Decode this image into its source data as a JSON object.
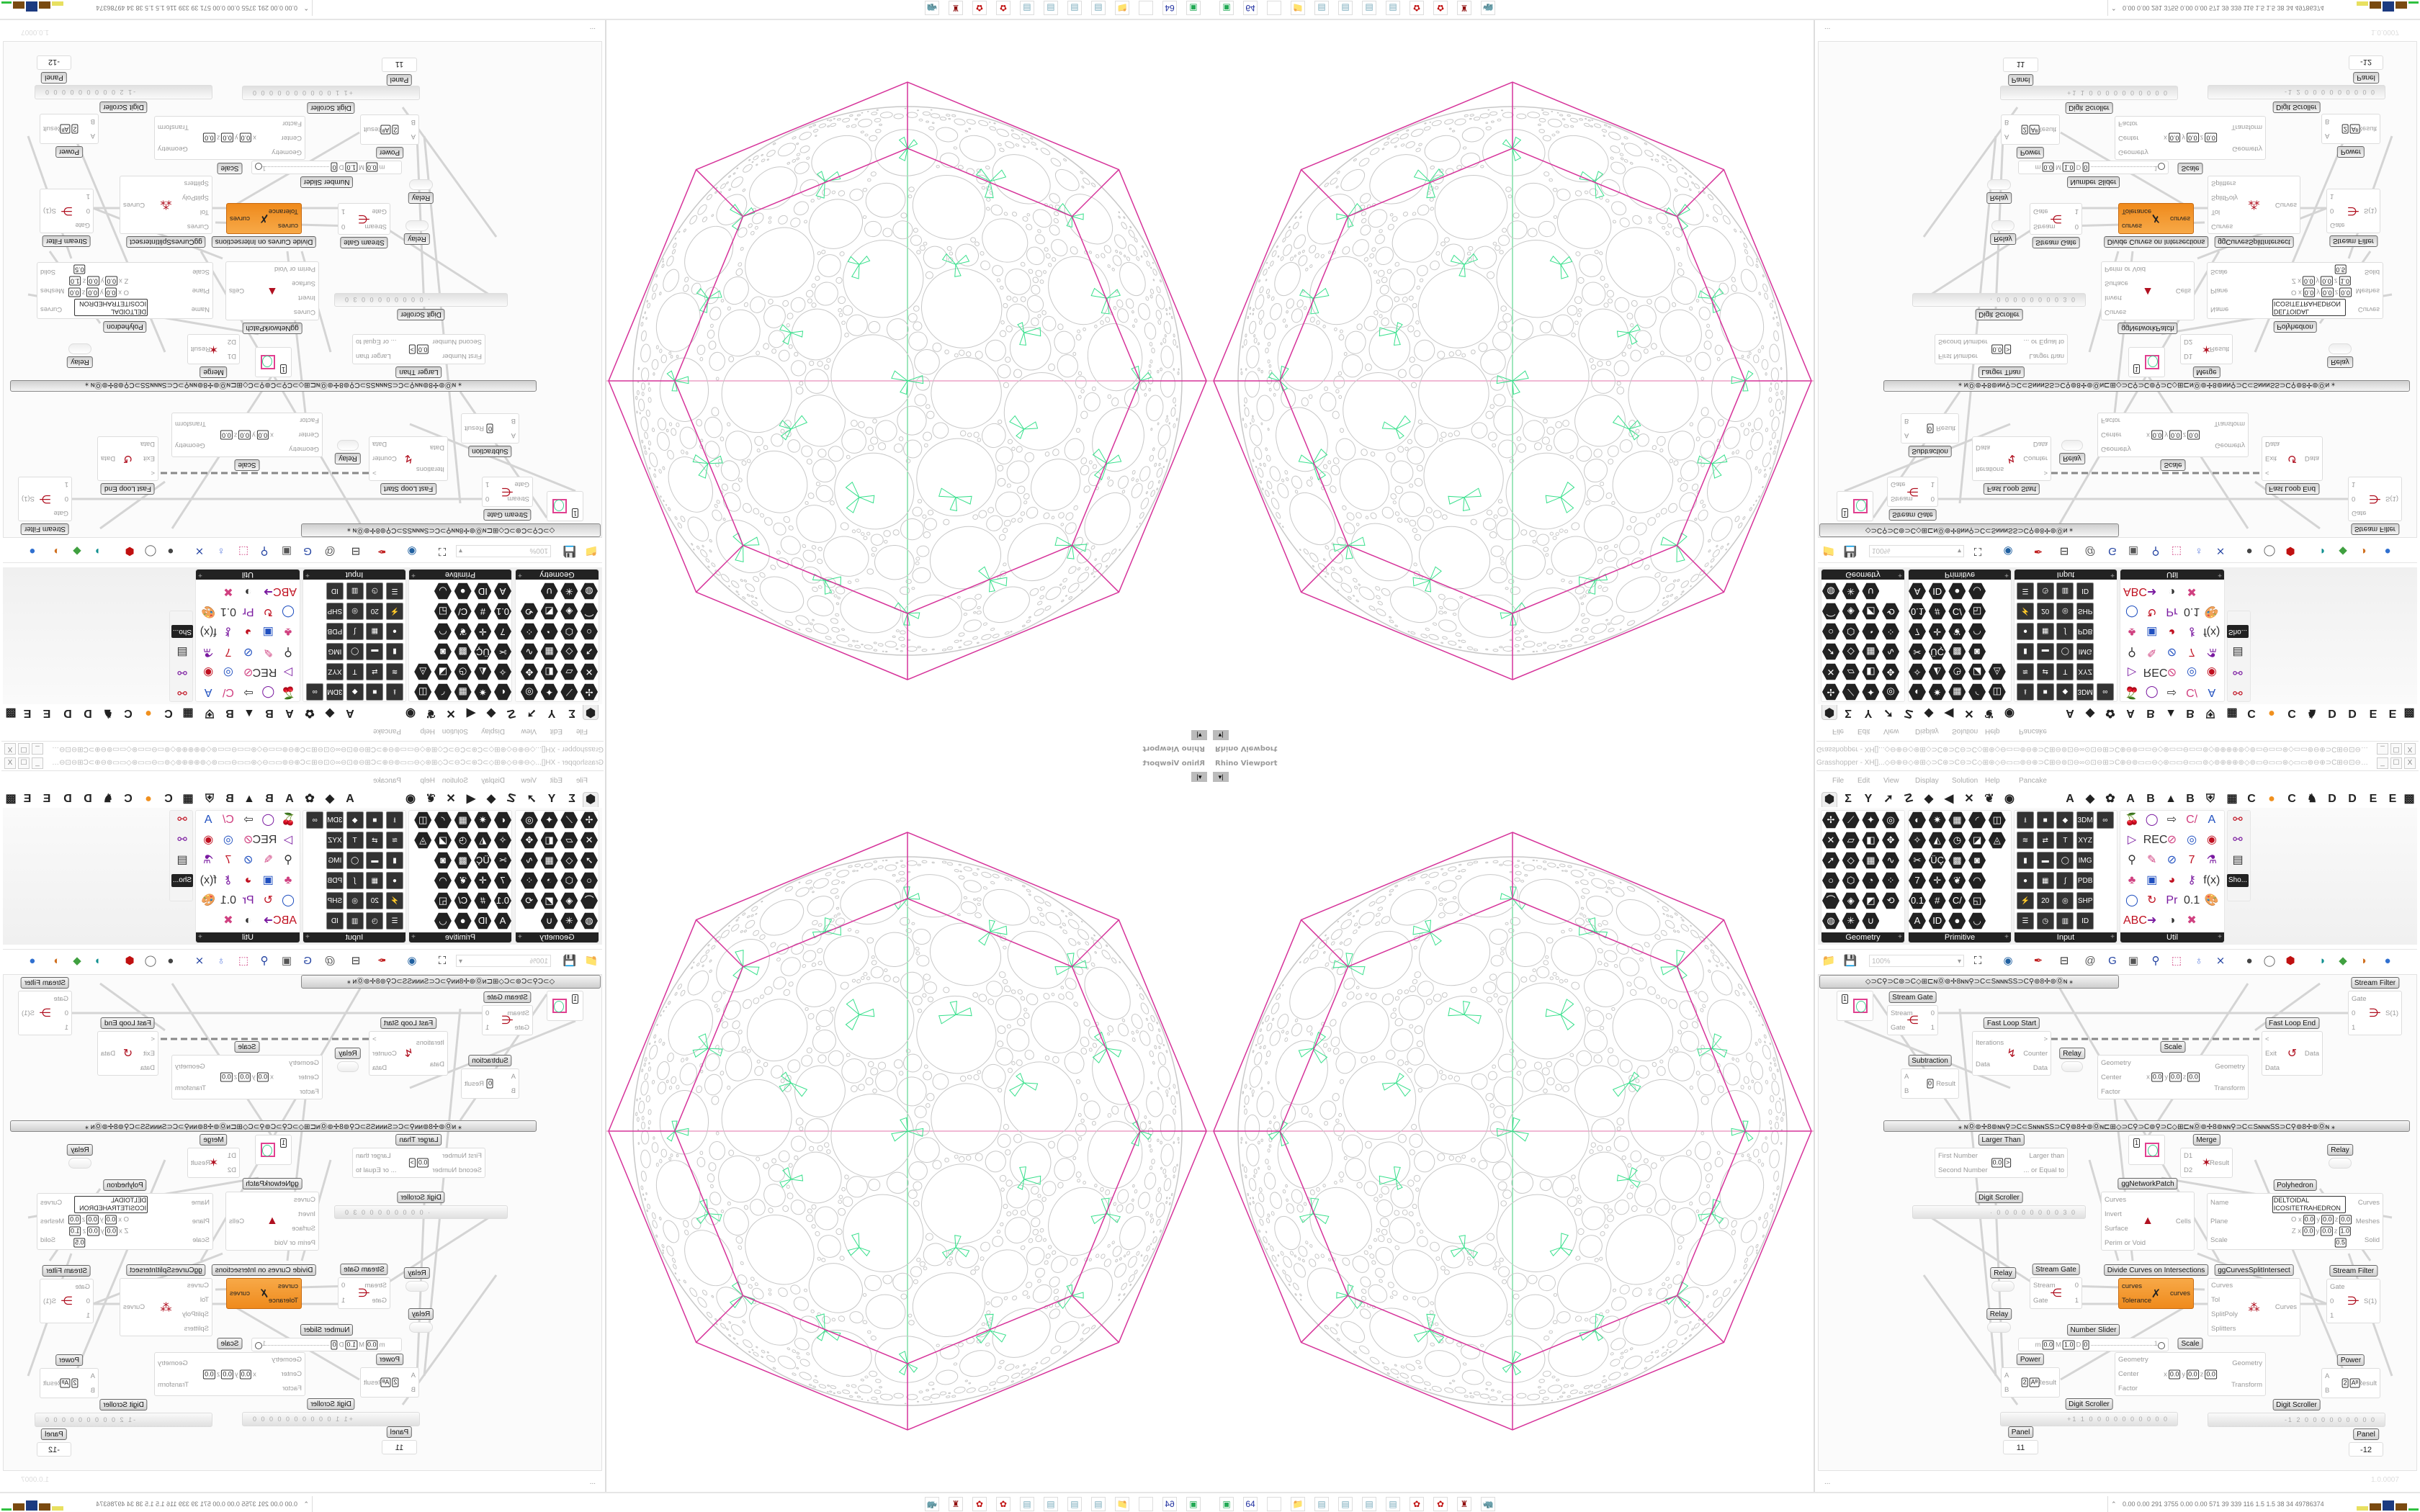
{
  "colors": {
    "accent_orange": "#f0901e",
    "polyhedron_outline": "#d6339a",
    "packing_lines": "#c8c8c8",
    "green_cells": "#38e08c",
    "axis_x": "#e070a8",
    "axis_y": "#3ccf7a"
  },
  "viewport": {
    "title": "Rhino Viewport",
    "dropdown": "▾|"
  },
  "grasshopper": {
    "title": "Grasshopper - XH[]...◇⊖⊕⊖◇⊛⊞◇⊃C⊛⊃C⊖⊃C◇⊞⊛◇⊖▭▭⊚⊖⊕⊃C⊞⊖⊚⊡⊖∞⊙⊡⊖⊞⊃C⊕⊖⊚▭▭⊖◇⊛▭▭⊖▭▭⊚◇⊚⊕⊕⊕⊚◇⊚▭⊖▭▭⊛◇▭▭⊚⊖⊕⊃C⊞⊖⊡⊖∞⊙⊡...",
    "window_buttons": [
      "_",
      "☐",
      "X"
    ],
    "menu": [
      "File",
      "Edit",
      "View",
      "Display",
      "Solution",
      "Help",
      "Pancake"
    ],
    "tabs": {
      "icons": [
        "⬢",
        "Σ",
        "Y",
        "➚",
        "☡",
        "◆",
        "◀",
        "✕",
        "❦",
        "◉"
      ],
      "letters": [
        "A",
        "◆",
        "✿",
        "A",
        "B",
        "▲",
        "B",
        "⛨",
        "▦",
        "C",
        "●",
        "C",
        "♞",
        "D",
        "D",
        "E",
        "E",
        "▩"
      ]
    },
    "ribbon": {
      "groups": [
        {
          "label": "Geometry",
          "style": "hex",
          "rows": [
            [
              "✢",
              "⟋",
              "✦",
              "◎"
            ],
            [
              "✕",
              "▱",
              "◧",
              "✥"
            ],
            [
              "➚",
              "◇",
              "▦",
              "∿"
            ],
            [
              "○",
              "⬡",
              "◔",
              "⁘"
            ],
            [
              "⌒",
              "◈",
              "◩",
              "⟲"
            ],
            [
              "◍",
              "✳",
              "∪"
            ]
          ]
        },
        {
          "label": "Primitive",
          "style": "hex",
          "rows": [
            [
              "◐",
              "✷",
              "▦",
              "◜",
              "◫"
            ],
            [
              "✧",
              "◭",
              "◷",
              "◪",
              "◬"
            ],
            [
              "✂",
              "ÜÇ",
              "▩",
              "◙"
            ],
            [
              "7",
              "✛",
              "❦",
              "◠"
            ],
            [
              "0.1",
              "#",
              "C/",
              "◱"
            ],
            [
              "A",
              "ID",
              "●",
              "◡"
            ]
          ]
        },
        {
          "label": "Input",
          "style": "box",
          "rows": [
            [
              "⭳",
              "■",
              "◆",
              "3DM",
              "∞"
            ],
            [
              "≋",
              "⇄",
              "T",
              "XYZ"
            ],
            [
              "▮",
              "▬",
              "◯",
              "IMG"
            ],
            [
              "●",
              "▦",
              "∫",
              "PDB"
            ],
            [
              "⚡",
              "20",
              "◎",
              "SHP"
            ],
            [
              "☰",
              "◷",
              "▥",
              "ID"
            ]
          ]
        },
        {
          "label": "Util",
          "style": "plain",
          "rows": [
            [
              "🍒",
              "◯",
              "⇨",
              "C/",
              "A"
            ],
            [
              "▷",
              "REC",
              "⊘",
              "◎",
              "◉"
            ],
            [
              "⚲",
              "✎",
              "⊘",
              "7",
              "⚗"
            ],
            [
              "♣",
              "▣",
              "◕",
              "⚷",
              "f(x)"
            ],
            [
              "◯",
              "↻",
              "Pr",
              "0.1",
              "🎨"
            ],
            [
              "ABC",
              "➜",
              "◑",
              "✖"
            ]
          ]
        },
        {
          "label": "",
          "style": "plain",
          "rows": [
            [
              "⚯"
            ],
            [
              "⚯"
            ],
            [
              "▤"
            ]
          ],
          "extra": "Sho..."
        }
      ]
    },
    "toolbar": {
      "zoom": "100%",
      "icons": [
        "folder",
        "save",
        "zoom-extents",
        "eye",
        "sketch",
        "bake",
        "at",
        "gha",
        "widget",
        "search",
        "package",
        "bulb",
        "cross",
        "sphere",
        "ring",
        "cube",
        "teal",
        "green",
        "orange-sphere",
        "blue-sphere"
      ],
      "glyphs": [
        "📁",
        "💾",
        "⛶",
        "◉",
        "✒",
        "⊟",
        "@",
        "G",
        "▣",
        "⚲",
        "⬚",
        "♁",
        "⨯",
        "●",
        "◯",
        "⬢",
        "◗",
        "◆",
        "◑",
        "●"
      ]
    },
    "canvas": {
      "group_bars": [
        "◇⊃C⚲⊃C⊚⊃C◇⊞⊏ɴⓄ⊚✢8ɴɴ⚲⊃C⊂SɴɴɴSS⊃C⚲⊚8✢⊚Ⓞɴ  ⁎",
        "⁎   ɴⓄ⊚✢8⊚ɴɴ⚲⊃C⊂SɴɴɴSS⊃C⚲⊚8✢⊚Ⓞɴ⊏⊞◇⊃C⚲⊃C⊚⚲⊃C◇⊞⊏ɴⓄ⊚✢8⊚ɴɴ⚲⊃C⊂SɴɴɴSS⊃C⚲⊚8✢⊚Ⓞɴ   ⁎"
      ],
      "components": [
        {
          "id": "circ1",
          "type": "param",
          "value": "1"
        },
        {
          "id": "sg1",
          "title": "Stream Gate",
          "in": [
            "Stream",
            "Gate"
          ],
          "out": [
            "0",
            "1"
          ],
          "icon": "⋲"
        },
        {
          "id": "fls",
          "title": "Fast Loop Start",
          "in": [
            "Iterations",
            "Data"
          ],
          "out": [
            ">",
            "Counter",
            "Data"
          ],
          "icon": "↯"
        },
        {
          "id": "relay1",
          "type": "relay",
          "title": "Relay"
        },
        {
          "id": "sub",
          "title": "Subtraction",
          "in": [
            "A",
            "B"
          ],
          "out": [
            "Result"
          ],
          "icon": "−",
          "fields": [
            "0"
          ]
        },
        {
          "id": "scale1",
          "title": "Scale",
          "in": [
            "Geometry",
            "Center",
            "Factor"
          ],
          "out": [
            "Geometry",
            "Transform"
          ],
          "fields": [
            "x",
            "0.0",
            "y",
            "0.0",
            "z",
            "0.0"
          ]
        },
        {
          "id": "fle",
          "title": "Fast Loop End",
          "in": [
            "<",
            "Exit",
            "Data"
          ],
          "out": [
            "Data"
          ],
          "icon": "↺"
        },
        {
          "id": "sf1",
          "title": "Stream Filter",
          "in": [
            "Gate",
            "0",
            "1"
          ],
          "out": [
            "S(1)"
          ],
          "icon": "⋺"
        },
        {
          "id": "lt",
          "title": "Larger Than",
          "in": [
            "First Number",
            "Second Number"
          ],
          "out": [
            "Larger than",
            "... or Equal to"
          ],
          "fields": [
            "0.0",
            ">"
          ]
        },
        {
          "id": "circ2",
          "type": "param",
          "value": "1"
        },
        {
          "id": "merge",
          "title": "Merge",
          "in": [
            "D1",
            "D2"
          ],
          "out": [
            "Result"
          ],
          "icon": "✶"
        },
        {
          "id": "relay2",
          "type": "relay",
          "title": "Relay"
        },
        {
          "id": "gnp",
          "title": "ggNetworkPatch",
          "in": [
            "Curves",
            "Invert",
            "Surface",
            "Perim or Void"
          ],
          "out": [
            "Cells"
          ],
          "icon": "▲"
        },
        {
          "id": "poly",
          "title": "Polyhedron",
          "in": [
            "Name",
            "Plane",
            "Scale"
          ],
          "out": [
            "Curves",
            "Meshes",
            "Solid"
          ],
          "fields": [
            "DELTOIDAL ICOSITETRAHEDRON"
          ],
          "fields2": [
            "O x",
            "0.0",
            "y",
            "0.0",
            "z",
            "0.0"
          ],
          "fields3": [
            "Z x",
            "0.0",
            "y",
            "0.0",
            "z",
            "1.0"
          ],
          "fields4": [
            "0.5"
          ]
        },
        {
          "id": "ds1",
          "type": "scroller",
          "title": "Digit Scroller",
          "digits": "· 0 0 0 0 0 0 0 0 3 0"
        },
        {
          "id": "relay3",
          "type": "relay",
          "title": "Relay"
        },
        {
          "id": "sg2",
          "title": "Stream Gate",
          "in": [
            "Stream",
            "Gate"
          ],
          "out": [
            "0",
            "1"
          ],
          "icon": "⋲"
        },
        {
          "id": "dci",
          "title": "Divide Curves on Intersections",
          "in": [
            "curves",
            "Tolerance"
          ],
          "out": [
            "curves"
          ],
          "icon": "✗",
          "selected": true
        },
        {
          "id": "gcsi",
          "title": "ggCurvesSplitIntersect",
          "in": [
            "Curves",
            "Tol",
            "SplitPoly",
            "Splitters"
          ],
          "out": [
            "Curves"
          ],
          "icon": "⁂"
        },
        {
          "id": "sf2",
          "title": "Stream Filter",
          "in": [
            "Gate",
            "0",
            "1"
          ],
          "out": [
            "S(1)"
          ],
          "icon": "⋺"
        },
        {
          "id": "relay4",
          "type": "relay",
          "title": "Relay"
        },
        {
          "id": "ns",
          "type": "slider",
          "title": "Number Slider",
          "fields": [
            "m",
            "0.0",
            "M",
            "1.0",
            "D",
            "0"
          ],
          "value": "1"
        },
        {
          "id": "scale2",
          "title": "Scale",
          "in": [
            "Geometry",
            "Center",
            "Factor"
          ],
          "out": [
            "Geometry",
            "Transform"
          ],
          "fields": [
            "x",
            "0.0",
            "y",
            "0.0",
            "z",
            "0.0"
          ]
        },
        {
          "id": "pow1",
          "title": "Power",
          "in": [
            "A",
            "B"
          ],
          "out": [
            "Result"
          ],
          "fields": [
            "2",
            "Aᴮ"
          ]
        },
        {
          "id": "pow2",
          "title": "Power",
          "in": [
            "A",
            "B"
          ],
          "out": [
            "Result"
          ],
          "fields": [
            "2",
            "Aᴮ"
          ]
        },
        {
          "id": "ds2",
          "type": "scroller",
          "title": "Digit Scroller",
          "digits": "+1 1 0 0 0 0 0 0 0 0 0 0"
        },
        {
          "id": "ds3",
          "type": "scroller",
          "title": "Digit Scroller",
          "digits": "-1 2 0 0 0 0 0 0 0 0 0"
        },
        {
          "id": "panel1",
          "type": "panel",
          "title": "Panel",
          "text": "11"
        },
        {
          "id": "panel2",
          "type": "panel",
          "title": "Panel",
          "text": "-12"
        }
      ]
    },
    "status": {
      "left": "...",
      "version": "1.0.0007"
    }
  },
  "taskbar": {
    "icons": [
      "monitor",
      "floppy-64",
      "blank",
      "folder",
      "notepad",
      "notepad",
      "notepad",
      "notepad",
      "red-app",
      "red-app",
      "red-trash",
      "rhino"
    ],
    "glyphs": [
      "▣",
      "64",
      "",
      "📁",
      "▤",
      "▤",
      "▤",
      "▤",
      "✿",
      "✿",
      "♜",
      "🦏"
    ],
    "stats": "0.00  0.00  291  3755 0.00  0.00  571   39   339  116  1.5  1.5  38   34  49786374"
  }
}
